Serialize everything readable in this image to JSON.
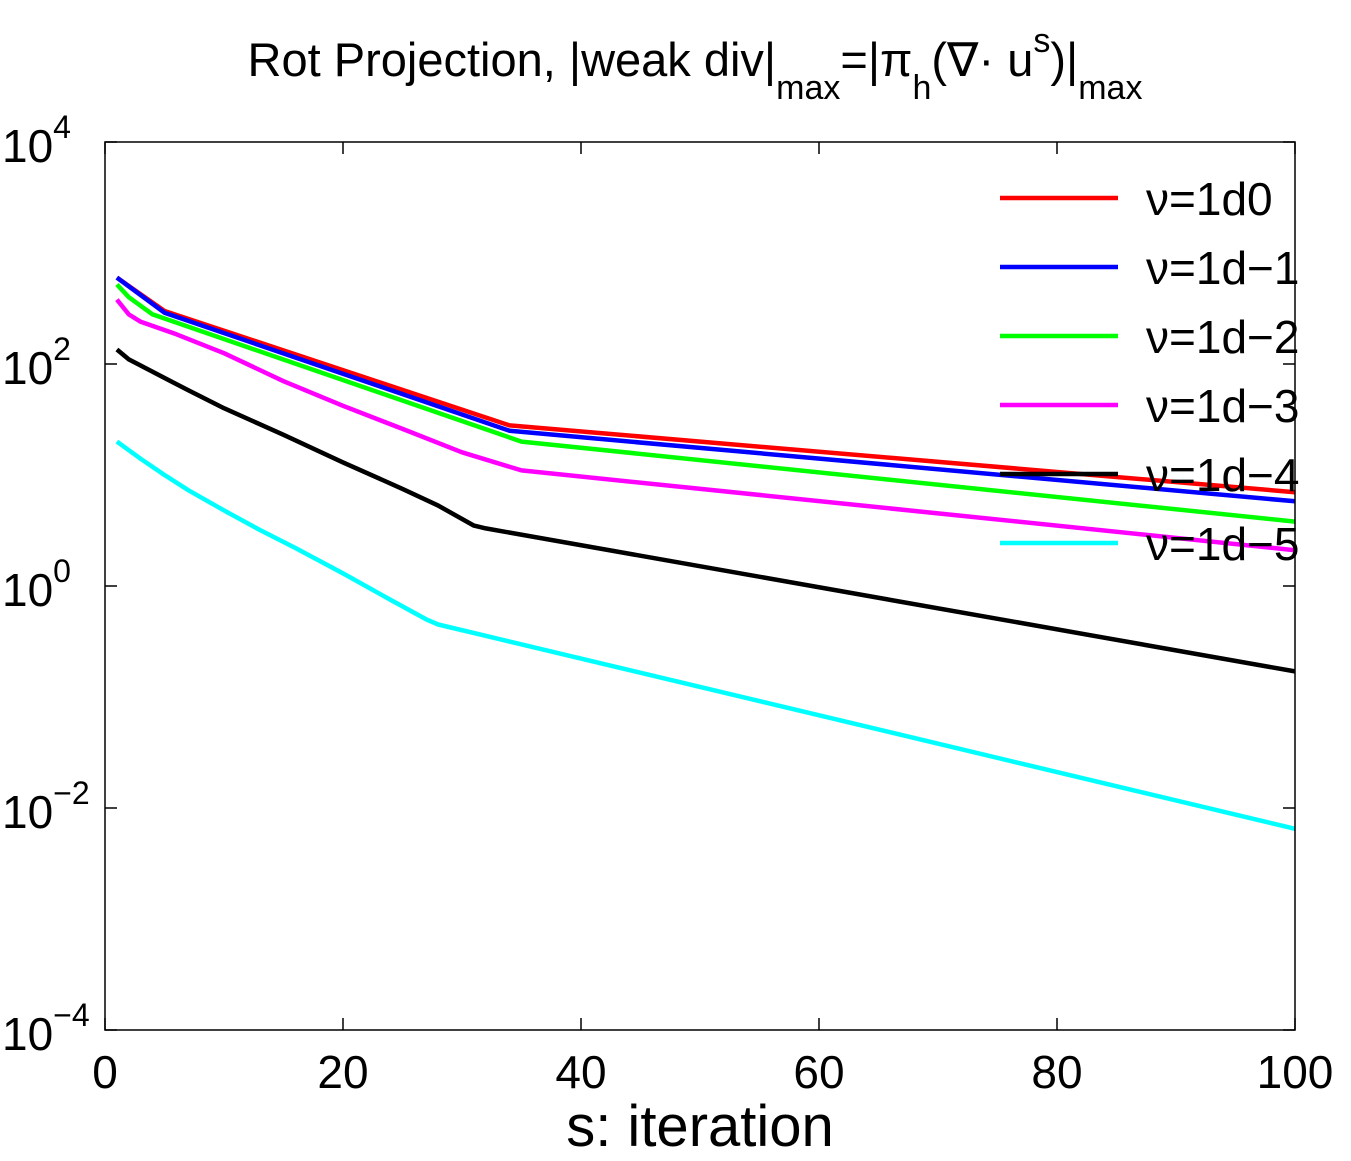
{
  "chart_data": {
    "type": "line",
    "title": {
      "prefix": "Rot Projection, |weak div|",
      "sub1": "max",
      "mid": "=|π",
      "sub2": "h",
      "paren_open": "(∇· u",
      "sup": "s",
      "paren_close": ")|",
      "sub3": "max"
    },
    "xlabel": "s: iteration",
    "ylabel": "",
    "xlim": [
      0,
      100
    ],
    "ylim_log10": [
      -4,
      4
    ],
    "y_scale": "log",
    "x_ticks": [
      {
        "value": 0,
        "label": "0"
      },
      {
        "value": 20,
        "label": "20"
      },
      {
        "value": 40,
        "label": "40"
      },
      {
        "value": 60,
        "label": "60"
      },
      {
        "value": 80,
        "label": "80"
      },
      {
        "value": 100,
        "label": "100"
      }
    ],
    "y_ticks": [
      {
        "exp": 4,
        "base": "10",
        "sup": "4"
      },
      {
        "exp": 2,
        "base": "10",
        "sup": "2"
      },
      {
        "exp": 0,
        "base": "10",
        "sup": "0"
      },
      {
        "exp": -2,
        "base": "10",
        "sup": "−2"
      },
      {
        "exp": -4,
        "base": "10",
        "sup": "−4"
      }
    ],
    "legend_position": "top-right",
    "grid": false,
    "series": [
      {
        "name": "ν=1d0",
        "color": "#ff0000",
        "points": [
          [
            1,
            600
          ],
          [
            5,
            300
          ],
          [
            34,
            28
          ],
          [
            100,
            7
          ]
        ]
      },
      {
        "name": "ν=1d−1",
        "color": "#0000ff",
        "points": [
          [
            1,
            600
          ],
          [
            5,
            290
          ],
          [
            34,
            25
          ],
          [
            100,
            5.8
          ]
        ]
      },
      {
        "name": "ν=1d−2",
        "color": "#00ff00",
        "points": [
          [
            1,
            520
          ],
          [
            2,
            400
          ],
          [
            4,
            280
          ],
          [
            35,
            20
          ],
          [
            100,
            3.8
          ]
        ]
      },
      {
        "name": "ν=1d−3",
        "color": "#ff00ff",
        "points": [
          [
            1,
            380
          ],
          [
            2,
            280
          ],
          [
            3,
            240
          ],
          [
            6,
            185
          ],
          [
            10,
            125
          ],
          [
            15,
            70
          ],
          [
            20,
            42
          ],
          [
            25,
            26
          ],
          [
            30,
            16
          ],
          [
            35,
            11
          ],
          [
            100,
            2.1
          ]
        ]
      },
      {
        "name": "ν=1d−4",
        "color": "#000000",
        "points": [
          [
            1,
            135
          ],
          [
            2,
            110
          ],
          [
            4,
            85
          ],
          [
            7,
            58
          ],
          [
            10,
            40
          ],
          [
            15,
            23
          ],
          [
            20,
            13
          ],
          [
            25,
            7.5
          ],
          [
            28,
            5.3
          ],
          [
            31,
            3.5
          ],
          [
            32,
            3.3
          ],
          [
            100,
            0.17
          ]
        ]
      },
      {
        "name": "ν=1d−5",
        "color": "#00ffff",
        "points": [
          [
            1,
            20
          ],
          [
            3,
            14
          ],
          [
            5,
            10
          ],
          [
            7,
            7.3
          ],
          [
            10,
            4.8
          ],
          [
            13,
            3.2
          ],
          [
            16,
            2.2
          ],
          [
            20,
            1.3
          ],
          [
            24,
            0.75
          ],
          [
            27,
            0.5
          ],
          [
            28,
            0.45
          ],
          [
            100,
            0.0065
          ]
        ]
      }
    ]
  }
}
